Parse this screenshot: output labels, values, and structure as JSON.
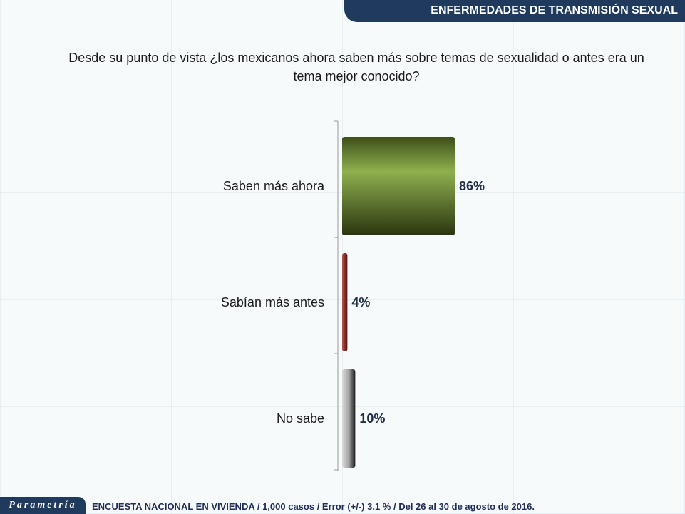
{
  "header": {
    "title": "ENFERMEDADES DE TRANSMISIÓN SEXUAL"
  },
  "footer": {
    "logo": "Parametría",
    "note": "ENCUESTA NACIONAL EN VIVIENDA / 1,000 casos / Error (+/-) 3.1 % / Del 26 al 30 de agosto de 2016."
  },
  "chart_data": {
    "type": "bar",
    "orientation": "horizontal",
    "title": "Desde su punto de vista ¿los mexicanos ahora saben más sobre temas de sexualidad o antes era un tema mejor conocido?",
    "categories": [
      "Saben más ahora",
      "Sabían más antes",
      "No sabe"
    ],
    "values": [
      86,
      4,
      10
    ],
    "data_labels": [
      "86%",
      "4%",
      "10%"
    ],
    "colors": [
      "#76923c",
      "#9b2d2d",
      "#a6a6a6"
    ],
    "xlim": [
      0,
      100
    ],
    "grid": false,
    "legend": "none"
  }
}
